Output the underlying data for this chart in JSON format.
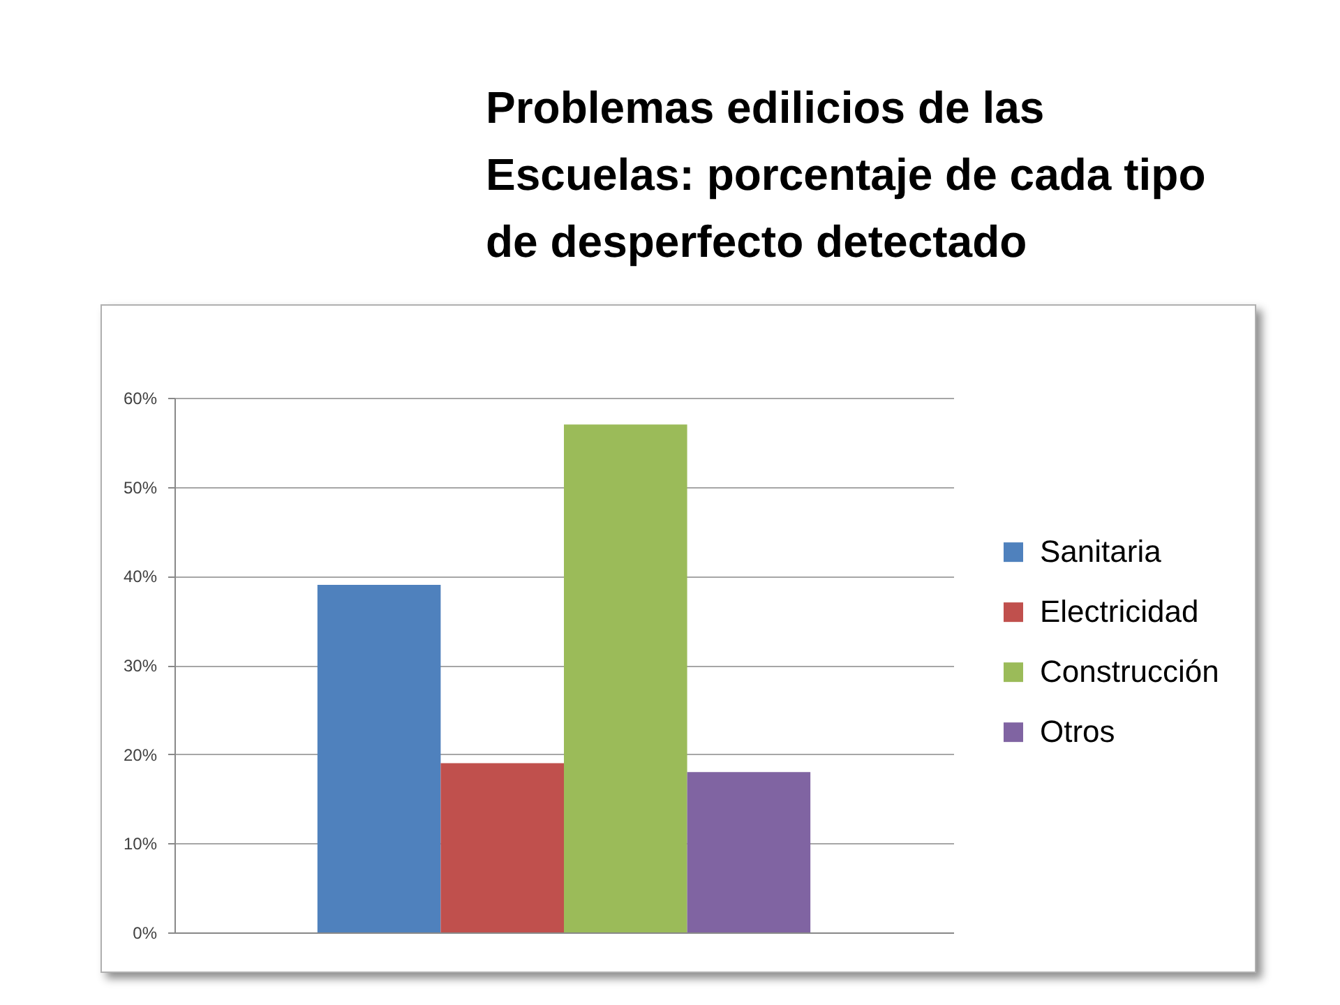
{
  "chart_data": {
    "type": "bar",
    "title": "Problemas edilicios de las Escuelas: porcentaje de cada tipo de desperfecto detectado",
    "categories": [
      null
    ],
    "series": [
      {
        "name": "Sanitaria",
        "color": "#4f81bd",
        "values": [
          39
        ]
      },
      {
        "name": "Electricidad",
        "color": "#c0504d",
        "values": [
          19
        ]
      },
      {
        "name": "Construcción",
        "color": "#9bbb59",
        "values": [
          57
        ]
      },
      {
        "name": "Otros",
        "color": "#8064a2",
        "values": [
          18
        ]
      }
    ],
    "ylim": [
      0,
      60
    ],
    "yticks": [
      {
        "value": 0,
        "label": "0%"
      },
      {
        "value": 10,
        "label": "10%"
      },
      {
        "value": 20,
        "label": "20%"
      },
      {
        "value": 30,
        "label": "30%"
      },
      {
        "value": 40,
        "label": "40%"
      },
      {
        "value": 50,
        "label": "50%"
      },
      {
        "value": 60,
        "label": "60%"
      }
    ],
    "grid": "y",
    "legend": "right",
    "tick_labels": "y"
  }
}
